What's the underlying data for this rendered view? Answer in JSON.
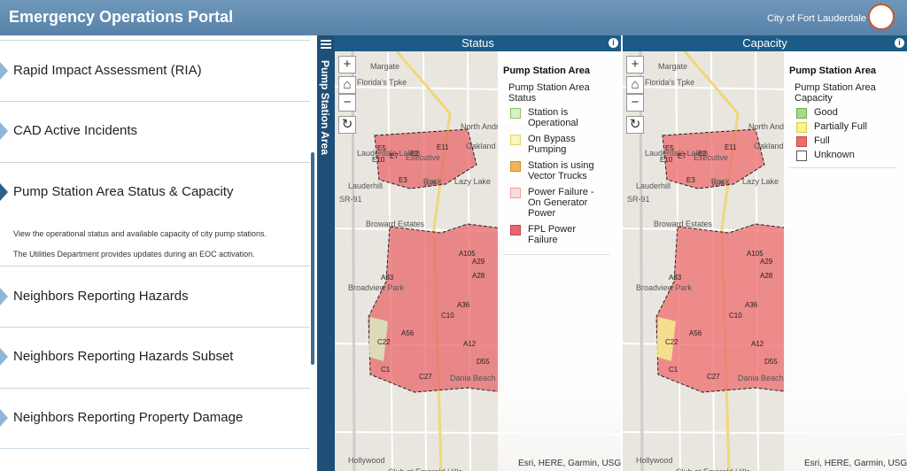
{
  "header": {
    "title": "Emergency Operations Portal",
    "city": "City of Fort Lauderdale"
  },
  "sidebar": {
    "items": [
      {
        "title": "Rapid Impact Assessment (RIA)"
      },
      {
        "title": "CAD Active Incidents"
      },
      {
        "title": "Pump Station Area Status & Capacity",
        "description": [
          "View the operational status and available capacity of city pump stations.",
          "The Utilities Department provides updates during an EOC activation."
        ]
      },
      {
        "title": "Neighbors Reporting Hazards"
      },
      {
        "title": "Neighbors Reporting Hazards Subset"
      },
      {
        "title": "Neighbors Reporting Property Damage"
      }
    ]
  },
  "side_tab": "Pump Station Area",
  "map_labels": [
    "Margate",
    "Florida's Tpke",
    "Lauderdale Lakes",
    "Lauderhill",
    "Oakland Park",
    "Lazy Lake",
    "Rock",
    "Wilt",
    "Broward Estates",
    "Broadview Park",
    "Dania Beach",
    "Hollywood",
    "Club at Emerald Hills",
    "SR-91",
    "North Andrews Gardens",
    "Executive"
  ],
  "districts": [
    "E2",
    "E7",
    "E3",
    "E10",
    "E11",
    "E5",
    "A105",
    "A29",
    "A33",
    "A36",
    "A28",
    "C10",
    "C27",
    "C22",
    "C1",
    "D55",
    "A12",
    "A56"
  ],
  "panels": [
    {
      "title": "Status",
      "attribution": "Esri, HERE, Garmin, USGS, NOAA",
      "legend": {
        "title": "Pump Station Area",
        "subtitle": "Pump Station Area Status",
        "items": [
          {
            "label": "Station is Operational",
            "color": "#d9efc6",
            "border": "#8cc46a"
          },
          {
            "label": "On Bypass Pumping",
            "color": "#fbf4bc",
            "border": "#e3d36a"
          },
          {
            "label": "Station is using Vector Trucks",
            "color": "#f2b457",
            "border": "#d08a2a"
          },
          {
            "label": "Power Failure - On Generator Power",
            "color": "#f9dddd",
            "border": "#e7a1a1"
          },
          {
            "label": "FPL Power Failure",
            "color": "#e8676b",
            "border": "#c74448"
          }
        ]
      }
    },
    {
      "title": "Capacity",
      "attribution": "Esri, HERE, Garmin, USGS, NOAA",
      "legend": {
        "title": "Pump Station Area",
        "subtitle": "Pump Station Area Capacity",
        "items": [
          {
            "label": "Good",
            "color": "#a8d98a",
            "border": "#6fae4e"
          },
          {
            "label": "Partially Full",
            "color": "#f8f291",
            "border": "#d8cc4a"
          },
          {
            "label": "Full",
            "color": "#ee6b6d",
            "border": "#c74448"
          },
          {
            "label": "Unknown",
            "color": "#ffffff",
            "border": "#555555"
          }
        ]
      }
    }
  ]
}
